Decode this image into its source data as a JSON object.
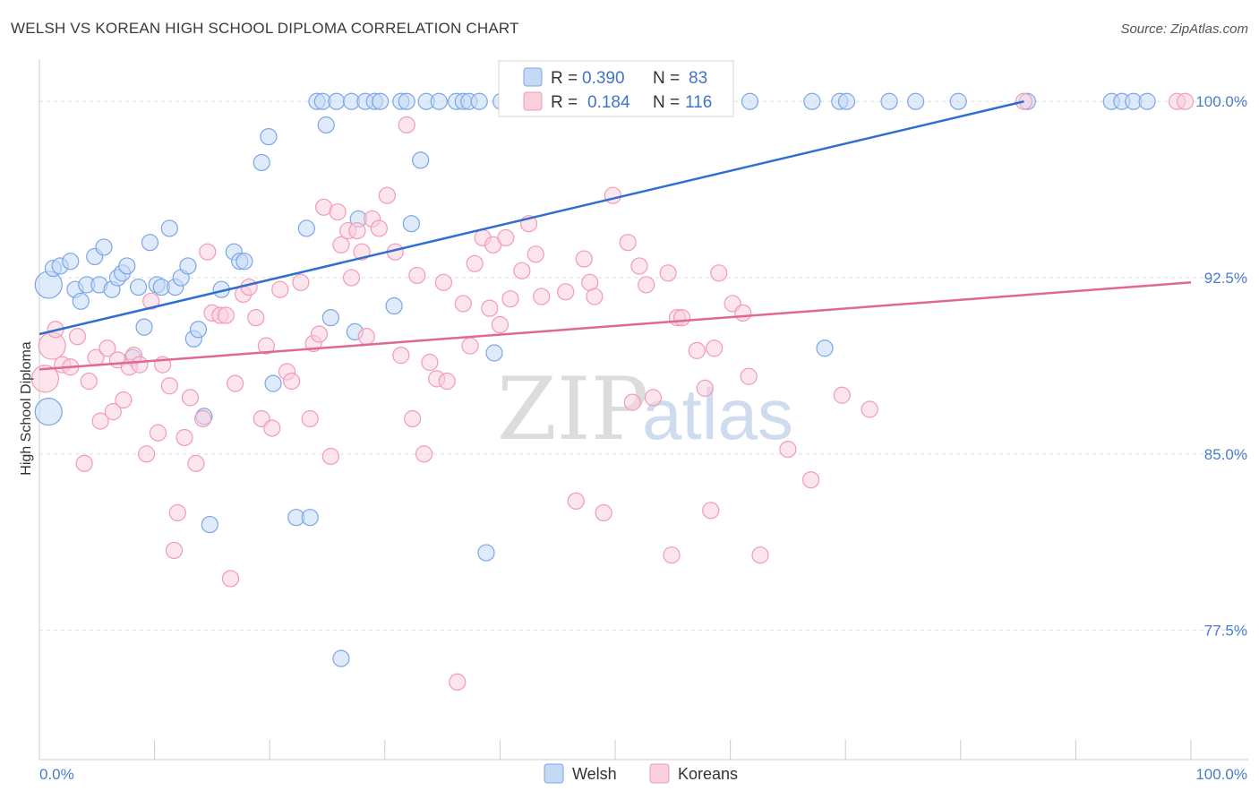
{
  "title": "WELSH VS KOREAN HIGH SCHOOL DIPLOMA CORRELATION CHART",
  "source": "Source: ZipAtlas.com",
  "watermark": {
    "zip": "ZIP",
    "atlas": "atlas"
  },
  "chart_data": {
    "type": "scatter",
    "ylabel": "High School Diploma",
    "xlim": [
      0,
      100
    ],
    "ylim": [
      72.0,
      101.8
    ],
    "x_tick_labels": [
      {
        "value": 0,
        "label": "0.0%"
      },
      {
        "value": 100,
        "label": "100.0%"
      }
    ],
    "y_tick_labels": [
      {
        "value": 100.0,
        "label": "100.0%"
      },
      {
        "value": 92.5,
        "label": "92.5%"
      },
      {
        "value": 85.0,
        "label": "85.0%"
      },
      {
        "value": 77.5,
        "label": "77.5%"
      }
    ],
    "grid": true,
    "legend": {
      "placement": "top-center",
      "r_label": "R =",
      "n_label": "N =",
      "entries": [
        {
          "series": "Welsh",
          "r": "0.390",
          "n": "83"
        },
        {
          "series": "Koreans",
          "r": "0.184",
          "n": "116"
        }
      ]
    },
    "series": [
      {
        "name": "Welsh",
        "color": "#7aa6e8",
        "fill": "#c5d9f5",
        "line_color": "#2f6fce",
        "trend": {
          "x": [
            0,
            85.5
          ],
          "y": [
            90.1,
            100.0
          ]
        },
        "points": [
          [
            0.8,
            86.8
          ],
          [
            0.8,
            92.2
          ],
          [
            1.2,
            92.9
          ],
          [
            1.8,
            93.0
          ],
          [
            2.7,
            93.2
          ],
          [
            3.1,
            92.0
          ],
          [
            3.6,
            91.5
          ],
          [
            4.1,
            92.2
          ],
          [
            4.8,
            93.4
          ],
          [
            5.2,
            92.2
          ],
          [
            5.6,
            93.8
          ],
          [
            6.3,
            92.0
          ],
          [
            6.8,
            92.5
          ],
          [
            7.2,
            92.7
          ],
          [
            7.6,
            93.0
          ],
          [
            8.1,
            89.1
          ],
          [
            8.6,
            92.1
          ],
          [
            9.1,
            90.4
          ],
          [
            9.6,
            94.0
          ],
          [
            10.2,
            92.2
          ],
          [
            10.6,
            92.1
          ],
          [
            11.3,
            94.6
          ],
          [
            11.8,
            92.1
          ],
          [
            12.3,
            92.5
          ],
          [
            12.9,
            93.0
          ],
          [
            13.4,
            89.9
          ],
          [
            13.8,
            90.3
          ],
          [
            14.3,
            86.6
          ],
          [
            14.8,
            82.0
          ],
          [
            15.8,
            92.0
          ],
          [
            16.9,
            93.6
          ],
          [
            17.4,
            93.2
          ],
          [
            17.8,
            93.2
          ],
          [
            19.3,
            97.4
          ],
          [
            19.9,
            98.5
          ],
          [
            20.3,
            88.0
          ],
          [
            22.3,
            82.3
          ],
          [
            23.2,
            94.6
          ],
          [
            23.5,
            82.3
          ],
          [
            24.1,
            100.0
          ],
          [
            24.6,
            100.0
          ],
          [
            24.9,
            99.0
          ],
          [
            25.3,
            90.8
          ],
          [
            25.8,
            100.0
          ],
          [
            26.2,
            76.3
          ],
          [
            27.1,
            100.0
          ],
          [
            27.4,
            90.2
          ],
          [
            27.7,
            95.0
          ],
          [
            28.3,
            100.0
          ],
          [
            29.1,
            100.0
          ],
          [
            29.6,
            100.0
          ],
          [
            30.8,
            91.3
          ],
          [
            31.4,
            100.0
          ],
          [
            31.9,
            100.0
          ],
          [
            32.3,
            94.8
          ],
          [
            33.1,
            97.5
          ],
          [
            33.6,
            100.0
          ],
          [
            34.7,
            100.0
          ],
          [
            36.2,
            100.0
          ],
          [
            36.8,
            100.0
          ],
          [
            37.3,
            100.0
          ],
          [
            38.2,
            100.0
          ],
          [
            38.8,
            80.8
          ],
          [
            39.5,
            89.3
          ],
          [
            40.1,
            100.0
          ],
          [
            41.3,
            100.0
          ],
          [
            42.3,
            100.0
          ],
          [
            47.4,
            100.0
          ],
          [
            53.3,
            100.0
          ],
          [
            53.8,
            100.0
          ],
          [
            61.7,
            100.0
          ],
          [
            67.1,
            100.0
          ],
          [
            68.2,
            89.5
          ],
          [
            69.5,
            100.0
          ],
          [
            70.1,
            100.0
          ],
          [
            73.8,
            100.0
          ],
          [
            76.1,
            100.0
          ],
          [
            79.8,
            100.0
          ],
          [
            85.8,
            100.0
          ],
          [
            93.1,
            100.0
          ],
          [
            94.0,
            100.0
          ],
          [
            95.0,
            100.0
          ],
          [
            96.2,
            100.0
          ]
        ]
      },
      {
        "name": "Koreans",
        "color": "#f29ab8",
        "fill": "#f9cfdd",
        "line_color": "#e06797",
        "trend": {
          "x": [
            0,
            100
          ],
          "y": [
            88.6,
            92.3
          ]
        },
        "points": [
          [
            0.5,
            88.2
          ],
          [
            1.1,
            89.6
          ],
          [
            1.4,
            90.3
          ],
          [
            2.0,
            88.8
          ],
          [
            2.7,
            88.7
          ],
          [
            3.3,
            90.0
          ],
          [
            3.9,
            84.6
          ],
          [
            4.3,
            88.1
          ],
          [
            4.9,
            89.1
          ],
          [
            5.3,
            86.4
          ],
          [
            5.9,
            89.5
          ],
          [
            6.4,
            86.8
          ],
          [
            6.8,
            89.0
          ],
          [
            7.3,
            87.3
          ],
          [
            7.8,
            88.7
          ],
          [
            8.2,
            89.2
          ],
          [
            8.7,
            88.8
          ],
          [
            9.3,
            85.0
          ],
          [
            9.7,
            91.5
          ],
          [
            10.3,
            85.9
          ],
          [
            10.7,
            88.8
          ],
          [
            11.3,
            87.9
          ],
          [
            11.7,
            80.9
          ],
          [
            12.0,
            82.5
          ],
          [
            12.6,
            85.7
          ],
          [
            13.1,
            87.4
          ],
          [
            13.6,
            84.6
          ],
          [
            14.2,
            86.5
          ],
          [
            14.6,
            93.6
          ],
          [
            15.0,
            91.0
          ],
          [
            15.7,
            90.9
          ],
          [
            16.2,
            90.9
          ],
          [
            16.6,
            79.7
          ],
          [
            17.0,
            88.0
          ],
          [
            17.7,
            91.8
          ],
          [
            18.2,
            92.1
          ],
          [
            18.8,
            90.8
          ],
          [
            19.3,
            86.5
          ],
          [
            19.7,
            89.6
          ],
          [
            20.2,
            86.1
          ],
          [
            20.9,
            92.0
          ],
          [
            21.5,
            88.5
          ],
          [
            21.9,
            88.1
          ],
          [
            22.7,
            92.3
          ],
          [
            23.5,
            86.5
          ],
          [
            23.8,
            89.7
          ],
          [
            24.3,
            90.1
          ],
          [
            24.7,
            95.5
          ],
          [
            25.3,
            84.9
          ],
          [
            25.9,
            95.3
          ],
          [
            26.2,
            93.9
          ],
          [
            26.8,
            94.5
          ],
          [
            27.1,
            92.5
          ],
          [
            27.6,
            94.5
          ],
          [
            28.0,
            93.6
          ],
          [
            28.4,
            90.0
          ],
          [
            28.9,
            95.0
          ],
          [
            29.5,
            94.6
          ],
          [
            30.2,
            96.0
          ],
          [
            30.9,
            93.6
          ],
          [
            31.4,
            89.2
          ],
          [
            31.9,
            99.0
          ],
          [
            32.4,
            86.5
          ],
          [
            32.8,
            92.6
          ],
          [
            33.4,
            85.0
          ],
          [
            33.9,
            88.9
          ],
          [
            34.5,
            88.2
          ],
          [
            35.1,
            92.3
          ],
          [
            35.4,
            88.1
          ],
          [
            36.3,
            75.3
          ],
          [
            36.8,
            91.4
          ],
          [
            37.4,
            89.6
          ],
          [
            37.8,
            93.1
          ],
          [
            38.5,
            94.2
          ],
          [
            39.1,
            91.2
          ],
          [
            39.4,
            93.9
          ],
          [
            40.0,
            90.5
          ],
          [
            40.5,
            94.2
          ],
          [
            40.9,
            91.6
          ],
          [
            41.9,
            92.8
          ],
          [
            42.5,
            94.8
          ],
          [
            43.1,
            93.5
          ],
          [
            43.6,
            91.7
          ],
          [
            44.6,
            100.0
          ],
          [
            45.7,
            91.9
          ],
          [
            46.6,
            83.0
          ],
          [
            47.3,
            93.3
          ],
          [
            47.8,
            92.3
          ],
          [
            48.2,
            91.7
          ],
          [
            49.0,
            82.5
          ],
          [
            49.8,
            96.0
          ],
          [
            51.1,
            94.0
          ],
          [
            51.5,
            87.2
          ],
          [
            52.1,
            93.0
          ],
          [
            52.7,
            92.2
          ],
          [
            53.3,
            87.4
          ],
          [
            54.6,
            92.7
          ],
          [
            54.9,
            80.7
          ],
          [
            55.4,
            90.8
          ],
          [
            55.8,
            90.8
          ],
          [
            57.1,
            89.4
          ],
          [
            57.8,
            87.8
          ],
          [
            58.3,
            82.6
          ],
          [
            58.6,
            89.5
          ],
          [
            59.0,
            92.7
          ],
          [
            60.2,
            91.4
          ],
          [
            61.1,
            91.0
          ],
          [
            61.6,
            88.3
          ],
          [
            62.6,
            80.7
          ],
          [
            65.0,
            85.2
          ],
          [
            67.0,
            83.9
          ],
          [
            69.7,
            87.5
          ],
          [
            72.1,
            86.9
          ],
          [
            85.5,
            100.0
          ],
          [
            98.8,
            100.0
          ],
          [
            99.5,
            100.0
          ]
        ]
      }
    ]
  }
}
